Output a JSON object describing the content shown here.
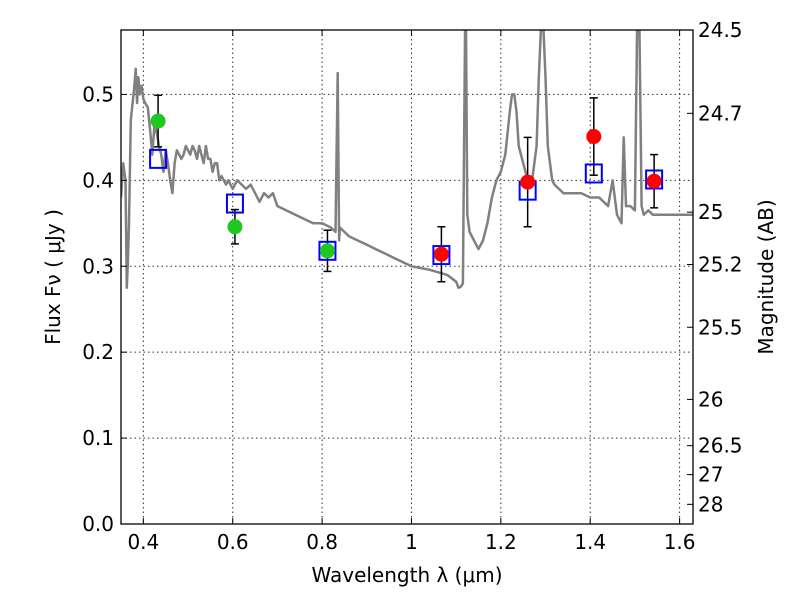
{
  "chart_data": {
    "type": "scatter",
    "xlabel": "Wavelength  λ (μm)",
    "ylabel": "Flux  Fν  ( μJy )",
    "y2label": "Magnitude (AB)",
    "xlim": [
      0.35,
      1.63
    ],
    "ylim": [
      0.0,
      0.575
    ],
    "x_ticks": [
      0.4,
      0.6,
      0.8,
      1.0,
      1.2,
      1.4,
      1.6
    ],
    "x_tick_labels": [
      "0.4",
      "0.6",
      "0.8",
      "1",
      "1.2",
      "1.4",
      "1.6"
    ],
    "y_ticks": [
      0.0,
      0.1,
      0.2,
      0.3,
      0.4,
      0.5
    ],
    "y_tick_labels": [
      "0.0",
      "0.1",
      "0.2",
      "0.3",
      "0.4",
      "0.5"
    ],
    "y2_ticks": [
      {
        "label": "24.5",
        "flux": 0.575
      },
      {
        "label": "24.7",
        "flux": 0.478
      },
      {
        "label": "25",
        "flux": 0.363
      },
      {
        "label": "25.2",
        "flux": 0.302
      },
      {
        "label": "25.5",
        "flux": 0.229
      },
      {
        "label": "26",
        "flux": 0.145
      },
      {
        "label": "26.5",
        "flux": 0.0912
      },
      {
        "label": "27",
        "flux": 0.0575
      },
      {
        "label": "28",
        "flux": 0.0229
      }
    ],
    "grid": true,
    "series": [
      {
        "kind": "line",
        "color": "#808080",
        "x": [
          0.35,
          0.355,
          0.36,
          0.363,
          0.365,
          0.368,
          0.372,
          0.376,
          0.38,
          0.383,
          0.386,
          0.389,
          0.392,
          0.396,
          0.4,
          0.404,
          0.41,
          0.415,
          0.42,
          0.425,
          0.43,
          0.435,
          0.44,
          0.445,
          0.45,
          0.455,
          0.46,
          0.465,
          0.47,
          0.475,
          0.48,
          0.485,
          0.49,
          0.495,
          0.5,
          0.505,
          0.51,
          0.515,
          0.52,
          0.525,
          0.53,
          0.535,
          0.54,
          0.545,
          0.55,
          0.555,
          0.56,
          0.565,
          0.57,
          0.575,
          0.58,
          0.585,
          0.59,
          0.6,
          0.61,
          0.62,
          0.63,
          0.64,
          0.65,
          0.66,
          0.67,
          0.68,
          0.69,
          0.7,
          0.72,
          0.74,
          0.76,
          0.78,
          0.8,
          0.82,
          0.83,
          0.835,
          0.838,
          0.84,
          0.85,
          0.86,
          0.88,
          0.9,
          0.92,
          0.94,
          0.96,
          0.98,
          1.0,
          1.02,
          1.04,
          1.06,
          1.08,
          1.1,
          1.105,
          1.11,
          1.115,
          1.12,
          1.122,
          1.125,
          1.13,
          1.14,
          1.15,
          1.16,
          1.17,
          1.18,
          1.19,
          1.2,
          1.21,
          1.22,
          1.225,
          1.23,
          1.235,
          1.24,
          1.25,
          1.26,
          1.27,
          1.28,
          1.285,
          1.29,
          1.295,
          1.3,
          1.305,
          1.31,
          1.315,
          1.32,
          1.33,
          1.34,
          1.36,
          1.38,
          1.4,
          1.42,
          1.43,
          1.44,
          1.45,
          1.46,
          1.47,
          1.475,
          1.48,
          1.49,
          1.5,
          1.505,
          1.51,
          1.515,
          1.52,
          1.53,
          1.54,
          1.56,
          1.58,
          1.6,
          1.63
        ],
        "y": [
          0.38,
          0.42,
          0.4,
          0.275,
          0.3,
          0.35,
          0.47,
          0.49,
          0.51,
          0.53,
          0.49,
          0.52,
          0.5,
          0.51,
          0.495,
          0.49,
          0.485,
          0.46,
          0.43,
          0.465,
          0.455,
          0.44,
          0.43,
          0.41,
          0.435,
          0.42,
          0.4,
          0.385,
          0.42,
          0.435,
          0.43,
          0.425,
          0.43,
          0.44,
          0.435,
          0.43,
          0.44,
          0.435,
          0.425,
          0.44,
          0.43,
          0.42,
          0.44,
          0.425,
          0.425,
          0.41,
          0.42,
          0.42,
          0.4,
          0.405,
          0.4,
          0.395,
          0.4,
          0.39,
          0.4,
          0.395,
          0.39,
          0.395,
          0.385,
          0.375,
          0.385,
          0.38,
          0.385,
          0.37,
          0.365,
          0.36,
          0.355,
          0.35,
          0.35,
          0.345,
          0.34,
          0.525,
          0.33,
          0.345,
          0.34,
          0.335,
          0.33,
          0.325,
          0.32,
          0.315,
          0.31,
          0.305,
          0.3,
          0.298,
          0.296,
          0.293,
          0.29,
          0.282,
          0.275,
          0.276,
          0.28,
          0.58,
          0.58,
          0.36,
          0.34,
          0.33,
          0.32,
          0.33,
          0.35,
          0.38,
          0.4,
          0.41,
          0.43,
          0.48,
          0.5,
          0.5,
          0.48,
          0.44,
          0.42,
          0.4,
          0.4,
          0.44,
          0.52,
          0.58,
          0.58,
          0.52,
          0.44,
          0.42,
          0.4,
          0.395,
          0.39,
          0.385,
          0.385,
          0.385,
          0.38,
          0.38,
          0.375,
          0.37,
          0.4,
          0.36,
          0.35,
          0.45,
          0.37,
          0.37,
          0.365,
          0.58,
          0.58,
          0.37,
          0.36,
          0.365,
          0.36,
          0.36,
          0.36,
          0.36,
          0.36
        ]
      },
      {
        "kind": "scatter",
        "marker": "circle",
        "color": "#1ec81e",
        "x": [
          0.433,
          0.605,
          0.812
        ],
        "y": [
          0.469,
          0.346,
          0.318
        ],
        "yerr": [
          0.03,
          0.02,
          0.024
        ]
      },
      {
        "kind": "scatter",
        "marker": "circle",
        "color": "#ff0000",
        "x": [
          1.067,
          1.26,
          1.408,
          1.543
        ],
        "y": [
          0.314,
          0.398,
          0.451,
          0.399
        ],
        "yerr": [
          0.032,
          0.052,
          0.045,
          0.031
        ]
      },
      {
        "kind": "scatter",
        "marker": "square-open",
        "color": "#0000ff",
        "x": [
          0.433,
          0.605,
          0.812,
          1.067,
          1.26,
          1.408,
          1.543
        ],
        "y": [
          0.425,
          0.373,
          0.318,
          0.313,
          0.388,
          0.408,
          0.401
        ]
      }
    ]
  }
}
